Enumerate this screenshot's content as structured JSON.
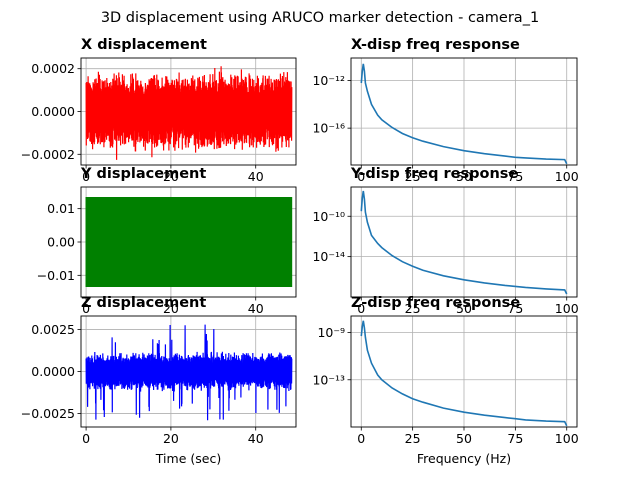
{
  "figure_title": "3D displacement using ARUCO marker detection - camera_1",
  "colors": {
    "x_signal": "#ff0000",
    "y_signal": "#008000",
    "z_signal": "#0000ff",
    "freq_line": "#1f77b4",
    "grid": "#b0b0b0",
    "axes": "#000000"
  },
  "chart_data": [
    {
      "type": "line",
      "title": "X displacement",
      "xlabel": "",
      "ylabel": "",
      "xlim": [
        -1.2,
        49.5
      ],
      "ylim": [
        -0.00025,
        0.00025
      ],
      "xticks": [
        0,
        20,
        40
      ],
      "xtick_labels": [
        "0",
        "20",
        "40"
      ],
      "yticks": [
        -0.0002,
        0,
        0.0002
      ],
      "ytick_labels": [
        "−0.0002",
        "0.0000",
        "0.0002"
      ],
      "grid": true,
      "signal": {
        "t_start": 0,
        "t_end": 48.5,
        "envelope_typical": 0.00019,
        "envelope_peak": 0.00023,
        "fill": "dense noise"
      }
    },
    {
      "type": "line",
      "title": "Y displacement",
      "xlabel": "",
      "ylabel": "",
      "xlim": [
        -1.2,
        49.5
      ],
      "ylim": [
        -0.0165,
        0.0165
      ],
      "xticks": [
        0,
        20,
        40
      ],
      "xtick_labels": [
        "0",
        "20",
        "40"
      ],
      "yticks": [
        -0.01,
        0,
        0.01
      ],
      "ytick_labels": [
        "−0.01",
        "0.00",
        "0.01"
      ],
      "grid": true,
      "signal": {
        "t_start": 0,
        "t_end": 48.5,
        "envelope_typical": 0.0135,
        "envelope_peak": 0.0135,
        "fill": "saturated square-like oscillation"
      }
    },
    {
      "type": "line",
      "title": "Z displacement",
      "xlabel": "Time (sec)",
      "ylabel": "",
      "xlim": [
        -1.2,
        49.5
      ],
      "ylim": [
        -0.0033,
        0.0033
      ],
      "xticks": [
        0,
        20,
        40
      ],
      "xtick_labels": [
        "0",
        "20",
        "40"
      ],
      "yticks": [
        -0.0025,
        0,
        0.0025
      ],
      "ytick_labels": [
        "−0.0025",
        "0.0000",
        "0.0025"
      ],
      "grid": true,
      "signal": {
        "t_start": 0,
        "t_end": 48.5,
        "envelope_typical": 0.0012,
        "envelope_peak": 0.0031,
        "fill": "dense noise with spikes"
      }
    },
    {
      "type": "line",
      "title": "X-disp freq response",
      "xlabel": "",
      "ylabel": "",
      "yscale": "log",
      "xlim": [
        -5,
        105
      ],
      "ylim_log10": [
        -19.1,
        -10.1
      ],
      "xticks": [
        0,
        25,
        50,
        75,
        100
      ],
      "xtick_labels": [
        "0",
        "25",
        "50",
        "75",
        "100"
      ],
      "yticks_log10": [
        -12,
        -16
      ],
      "ytick_labels": [
        "10⁻¹²",
        "10⁻¹⁶"
      ],
      "grid": true,
      "series": [
        {
          "x": [
            0,
            0.5,
            1,
            1.5,
            2,
            3,
            5,
            8,
            10,
            15,
            20,
            25,
            30,
            40,
            50,
            60,
            70,
            75,
            80,
            90,
            99,
            100
          ],
          "y_log10": [
            -12.2,
            -11.2,
            -10.6,
            -11.2,
            -12.2,
            -12.9,
            -14.0,
            -14.9,
            -15.3,
            -15.95,
            -16.45,
            -16.8,
            -17.1,
            -17.55,
            -17.9,
            -18.15,
            -18.35,
            -18.45,
            -18.5,
            -18.6,
            -18.65,
            -19.0
          ]
        }
      ]
    },
    {
      "type": "line",
      "title": "Y-disp freq response",
      "xlabel": "",
      "ylabel": "",
      "yscale": "log",
      "xlim": [
        -5,
        105
      ],
      "ylim_log10": [
        -18.0,
        -7.1
      ],
      "xticks": [
        0,
        25,
        50,
        75,
        100
      ],
      "xtick_labels": [
        "0",
        "25",
        "50",
        "75",
        "100"
      ],
      "yticks_log10": [
        -10,
        -14
      ],
      "ytick_labels": [
        "10⁻¹⁰",
        "10⁻¹⁴"
      ],
      "grid": true,
      "series": [
        {
          "x": [
            0,
            0.5,
            1,
            1.5,
            2,
            3,
            5,
            8,
            10,
            15,
            20,
            25,
            30,
            40,
            50,
            60,
            70,
            75,
            80,
            90,
            99,
            100
          ],
          "y_log10": [
            -9.5,
            -8.2,
            -7.5,
            -8.3,
            -9.6,
            -10.6,
            -11.9,
            -12.7,
            -13.1,
            -13.9,
            -14.5,
            -14.95,
            -15.35,
            -15.9,
            -16.3,
            -16.6,
            -16.85,
            -16.95,
            -17.05,
            -17.2,
            -17.3,
            -17.7
          ]
        }
      ]
    },
    {
      "type": "line",
      "title": "Z-disp freq response",
      "xlabel": "Frequency (Hz)",
      "ylabel": "",
      "yscale": "log",
      "xlim": [
        -5,
        105
      ],
      "ylim_log10": [
        -17.0,
        -7.6
      ],
      "xticks": [
        0,
        25,
        50,
        75,
        100
      ],
      "xtick_labels": [
        "0",
        "25",
        "50",
        "75",
        "100"
      ],
      "yticks_log10": [
        -9,
        -13
      ],
      "ytick_labels": [
        "10⁻⁹",
        "10⁻¹³"
      ],
      "grid": true,
      "series": [
        {
          "x": [
            0,
            0.5,
            1,
            1.5,
            2,
            3,
            5,
            8,
            10,
            15,
            20,
            25,
            30,
            40,
            50,
            60,
            70,
            75,
            80,
            90,
            99,
            100
          ],
          "y_log10": [
            -9.3,
            -8.5,
            -8.0,
            -8.6,
            -9.4,
            -10.5,
            -11.6,
            -12.6,
            -13.0,
            -13.7,
            -14.2,
            -14.6,
            -14.9,
            -15.4,
            -15.75,
            -16.0,
            -16.2,
            -16.3,
            -16.4,
            -16.5,
            -16.55,
            -16.9
          ]
        }
      ]
    }
  ]
}
